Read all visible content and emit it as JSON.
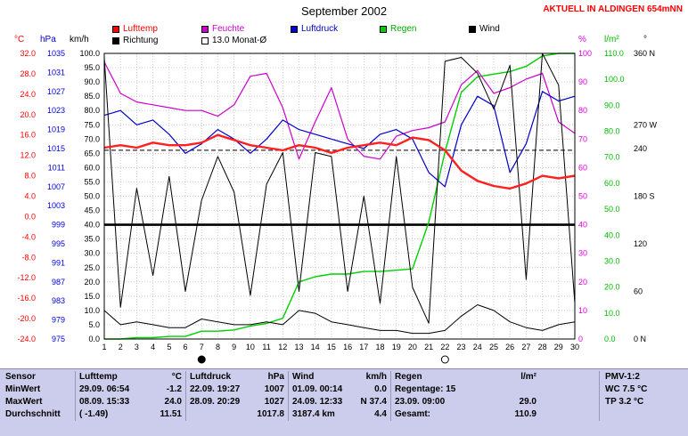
{
  "header": {
    "title": "September 2002",
    "location_banner": "AKTUELL IN ALDINGEN 654mNN"
  },
  "legend": {
    "rows": [
      [
        {
          "label": "Lufttemp",
          "color": "#ff0000",
          "text_color": "#ff0000"
        },
        {
          "label": "Feuchte",
          "color": "#cc00cc",
          "text_color": "#cc00cc"
        },
        {
          "label": "Luftdruck",
          "color": "#0000cc",
          "text_color": "#0000cc"
        },
        {
          "label": "Regen",
          "color": "#00cc00",
          "text_color": "#00aa00"
        },
        {
          "label": "Wind",
          "color": "#000000",
          "text_color": "#000000"
        }
      ],
      [
        {
          "label": "Richtung",
          "color": "#000000",
          "text_color": "#000000"
        },
        {
          "label": "13.0 Monat-Ø",
          "color": "#ffffff",
          "text_color": "#000000"
        }
      ]
    ]
  },
  "chart_data": {
    "type": "line",
    "title": "September 2002",
    "x": [
      1,
      2,
      3,
      4,
      5,
      6,
      7,
      8,
      9,
      10,
      11,
      12,
      13,
      14,
      15,
      16,
      17,
      18,
      19,
      20,
      21,
      22,
      23,
      24,
      25,
      26,
      27,
      28,
      29,
      30
    ],
    "grid": true,
    "axes": {
      "tempC": {
        "unit": "°C",
        "color": "#ff0000",
        "min": -24,
        "max": 32,
        "step": 4,
        "decimals": 1
      },
      "hPa": {
        "unit": "hPa",
        "color": "#0000dd",
        "min": 975,
        "max": 1035,
        "step": 4,
        "decimals": 0
      },
      "kmh": {
        "unit": "km/h",
        "color": "#000000",
        "min": 0,
        "max": 100,
        "step": 5,
        "decimals": 1
      },
      "pct": {
        "unit": "%",
        "color": "#dd00dd",
        "min": 0,
        "max": 100,
        "step": 10,
        "decimals": 0
      },
      "lm2": {
        "unit": "l/m²",
        "color": "#00bb00",
        "min": 0,
        "max": 110,
        "step": 10,
        "decimals": 1
      },
      "deg": {
        "unit": "°",
        "color": "#000000",
        "min": 0,
        "max": 360,
        "ticks": [
          [
            "360 N",
            360
          ],
          [
            "270 W",
            270
          ],
          [
            "240",
            240
          ],
          [
            "180 S",
            180
          ],
          [
            "120",
            120
          ],
          [
            "60",
            60
          ],
          [
            "0 N",
            0
          ]
        ]
      }
    },
    "series": [
      {
        "name": "Regen",
        "axis": "lm2",
        "color": "#00d000",
        "width": 1.4,
        "values": [
          0,
          0,
          0.5,
          0.5,
          1,
          1,
          3,
          3,
          3.5,
          5,
          6,
          8,
          22,
          24,
          25,
          25,
          26,
          26,
          26.5,
          27,
          45,
          72,
          95,
          101,
          102,
          103,
          105,
          109,
          110.5,
          110.9
        ]
      },
      {
        "name": "Feuchte",
        "axis": "pct",
        "color": "#cc00cc",
        "width": 1.2,
        "values": [
          97,
          86,
          83,
          82,
          81,
          80,
          80,
          78,
          82,
          92,
          93,
          81,
          63,
          76,
          88,
          70,
          64,
          63,
          71,
          73,
          74,
          76,
          89,
          94,
          86,
          88,
          91,
          93,
          76,
          72
        ]
      },
      {
        "name": "Luftdruck",
        "axis": "hPa",
        "color": "#0000cc",
        "width": 1.2,
        "values": [
          1022,
          1023,
          1020,
          1021,
          1018,
          1014,
          1016,
          1019,
          1017,
          1014,
          1017,
          1021,
          1019,
          1018,
          1017,
          1016,
          1015,
          1018,
          1019,
          1017,
          1010,
          1007,
          1020,
          1026,
          1024,
          1010,
          1016,
          1027,
          1025,
          1026
        ]
      },
      {
        "name": "Wind",
        "axis": "kmh",
        "color": "#000000",
        "width": 1,
        "values": [
          10,
          5,
          6,
          5,
          4,
          4,
          7,
          6,
          5,
          5,
          6,
          5,
          10,
          9,
          6,
          5,
          4,
          3,
          3,
          2,
          2,
          3,
          8,
          12,
          10,
          6,
          4,
          3,
          5,
          6
        ]
      },
      {
        "name": "Richtung",
        "axis": "deg",
        "color": "#000000",
        "width": 1,
        "values": [
          355,
          40,
          190,
          80,
          205,
          60,
          175,
          230,
          185,
          55,
          195,
          235,
          60,
          235,
          230,
          60,
          180,
          45,
          230,
          65,
          20,
          350,
          355,
          335,
          290,
          345,
          75,
          360,
          320,
          45
        ]
      },
      {
        "name": "Lufttemp",
        "axis": "tempC",
        "color": "#ff2020",
        "width": 2.4,
        "values": [
          13.5,
          14,
          13.5,
          14.5,
          14,
          14,
          14.5,
          16,
          15,
          14,
          13.5,
          13,
          14,
          13.5,
          12.5,
          13.5,
          14,
          14.5,
          14,
          15.5,
          15,
          13,
          9,
          7,
          6,
          5.5,
          6.5,
          8,
          7.5,
          8
        ]
      }
    ],
    "reference_lines": [
      {
        "name": "monats-durchschnitt",
        "label": "13.0 Monat-Ø",
        "axis": "tempC",
        "value": 13.0,
        "style": "dashed"
      },
      {
        "name": "threshold",
        "label": "",
        "axis": "kmh",
        "value": 40,
        "style": "thick"
      }
    ],
    "markers": [
      {
        "day": 7,
        "type": "new-moon",
        "symbol": "●"
      },
      {
        "day": 22,
        "type": "full-moon",
        "symbol": "○"
      }
    ]
  },
  "table": {
    "corner_label": "Sensor",
    "groups": [
      {
        "name": "Lufttemp",
        "unit": "°C"
      },
      {
        "name": "Luftdruck",
        "unit": "hPa"
      },
      {
        "name": "Wind",
        "unit": "km/h"
      },
      {
        "name": "Regen",
        "unit": "l/m²"
      }
    ],
    "pmv_header": "PMV-1:2",
    "rows": [
      {
        "label": "MinWert",
        "cells": [
          [
            "29.09. 06:54",
            "-1.2"
          ],
          [
            "22.09. 19:27",
            "1007"
          ],
          [
            "01.09. 00:14",
            "0.0"
          ],
          [
            "Regentage: 15",
            ""
          ]
        ],
        "pmv": "WC 7.5 °C"
      },
      {
        "label": "MaxWert",
        "cells": [
          [
            "08.09. 15:33",
            "24.0"
          ],
          [
            "28.09. 20:29",
            "1027"
          ],
          [
            "24.09. 12:33",
            "N 37.4"
          ],
          [
            "23.09. 09:00",
            "29.0"
          ]
        ],
        "pmv": "TP 3.2 °C"
      },
      {
        "label": "Durchschnitt",
        "cells": [
          [
            "( -1.49)",
            "11.51"
          ],
          [
            "",
            "1017.8"
          ],
          [
            "3187.4 km",
            "4.4"
          ],
          [
            "Gesamt:",
            "110.9"
          ]
        ],
        "pmv": ""
      }
    ]
  }
}
